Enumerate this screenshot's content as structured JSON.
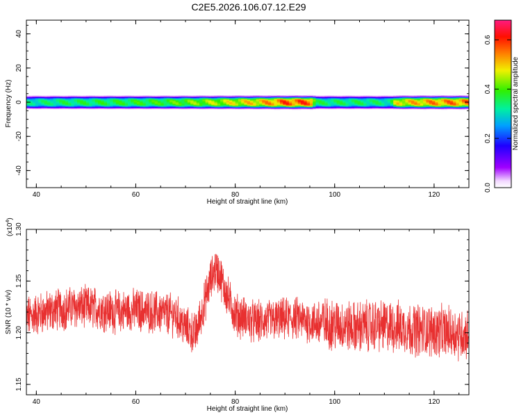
{
  "title": "C2E5.2026.106.07.12.E29",
  "colors": {
    "snr_line": "#e83030",
    "axes": "#000000",
    "background": "#ffffff"
  },
  "chart_data": [
    {
      "type": "heatmap",
      "xlabel": "Height of straight line (km)",
      "ylabel": "Frequency (Hz)",
      "xlim": [
        38,
        127
      ],
      "ylim": [
        -50,
        48
      ],
      "x_ticks": [
        "40",
        "60",
        "80",
        "100",
        "120"
      ],
      "y_ticks": [
        "40",
        "20",
        "0",
        "-20",
        "-40"
      ],
      "colorbar": {
        "label": "Normalized spectral amplitude",
        "range": [
          0,
          0.68
        ],
        "ticks": [
          "0.0",
          "0.2",
          "0.4",
          "0.6"
        ],
        "colormap": "rainbow (white-violet-blue-cyan-green-yellow-orange-red-magenta)"
      },
      "band": {
        "center_hz": 0,
        "half_width_hz": 4,
        "profile": [
          {
            "x": 38,
            "amp": 0.35
          },
          {
            "x": 45,
            "amp": 0.38
          },
          {
            "x": 55,
            "amp": 0.4
          },
          {
            "x": 65,
            "amp": 0.42
          },
          {
            "x": 75,
            "amp": 0.48
          },
          {
            "x": 85,
            "amp": 0.55
          },
          {
            "x": 90,
            "amp": 0.62
          },
          {
            "x": 95,
            "amp": 0.62
          },
          {
            "x": 96,
            "amp": 0.38
          },
          {
            "x": 105,
            "amp": 0.38
          },
          {
            "x": 111,
            "amp": 0.36
          },
          {
            "x": 112,
            "amp": 0.52
          },
          {
            "x": 120,
            "amp": 0.58
          },
          {
            "x": 127,
            "amp": 0.6
          }
        ]
      }
    },
    {
      "type": "line",
      "xlabel": "Height of straight line (km)",
      "ylabel": "SNR (10 * v/v)",
      "y_multiplier": "(x10",
      "y_multiplier_exp": "4",
      "y_multiplier_close": ")",
      "xlim": [
        38,
        127
      ],
      "ylim": [
        1.14,
        1.3
      ],
      "x_ticks": [
        "40",
        "60",
        "80",
        "100",
        "120"
      ],
      "y_ticks": [
        "1.30",
        "1.25",
        "1.20",
        "1.15"
      ],
      "series": [
        {
          "x": [
            38,
            40,
            44,
            48,
            52,
            56,
            60,
            64,
            68,
            70,
            72,
            74,
            75,
            76,
            77,
            78,
            80,
            84,
            88,
            92,
            96,
            100,
            104,
            108,
            112,
            116,
            120,
            124,
            127
          ],
          "y": [
            1.215,
            1.218,
            1.222,
            1.225,
            1.224,
            1.22,
            1.222,
            1.22,
            1.217,
            1.205,
            1.198,
            1.232,
            1.25,
            1.262,
            1.255,
            1.24,
            1.218,
            1.21,
            1.212,
            1.214,
            1.21,
            1.208,
            1.205,
            1.207,
            1.206,
            1.203,
            1.202,
            1.2,
            1.198
          ]
        }
      ]
    }
  ]
}
